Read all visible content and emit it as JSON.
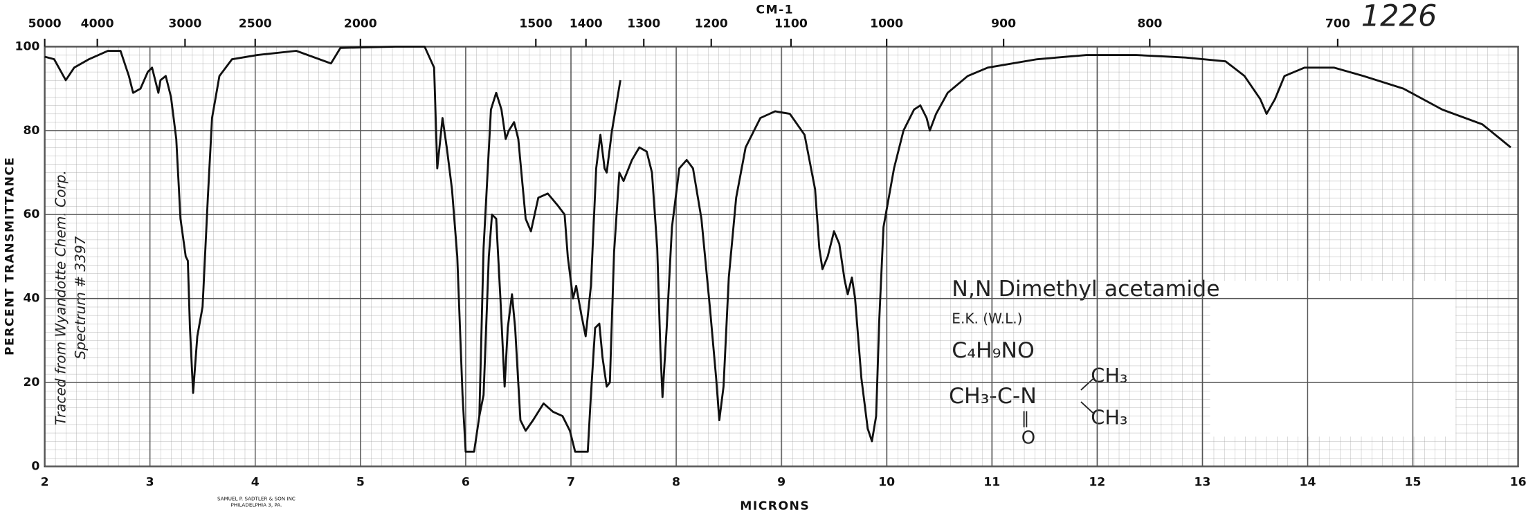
{
  "chart_data": {
    "type": "line",
    "xlabel": "MICRONS",
    "ylabel": "PERCENT TRANSMITTANCE",
    "x2label": "CM-1",
    "xlim": [
      2,
      16
    ],
    "xticks": [
      2,
      3,
      4,
      5,
      6,
      7,
      8,
      9,
      10,
      11,
      12,
      13,
      14,
      15,
      16
    ],
    "ylim": [
      0,
      100
    ],
    "yticks": [
      0,
      20,
      40,
      60,
      80,
      100
    ],
    "x2ticks": [
      5000,
      4000,
      3000,
      2500,
      2000,
      1500,
      1400,
      1300,
      1200,
      1100,
      1000,
      900,
      800,
      700
    ],
    "grid": true,
    "color": "#111111",
    "series": [
      {
        "color": "#111111",
        "x": [
          2.0,
          2.09,
          2.2,
          2.28,
          2.42,
          2.6,
          2.72,
          2.8,
          2.84,
          2.91,
          2.98,
          3.02,
          3.08,
          3.1,
          3.15,
          3.2,
          3.25,
          3.29,
          3.34,
          3.36,
          3.38,
          3.41,
          3.45,
          3.5,
          3.55,
          3.59,
          3.66,
          3.78,
          4.02,
          4.39,
          4.72,
          4.81,
          5.33,
          5.61,
          5.7,
          5.73,
          5.78,
          5.82,
          5.87,
          5.92,
          5.97,
          6.0,
          6.08,
          6.13,
          6.17,
          6.24,
          6.29,
          6.34,
          6.38,
          6.41,
          6.46,
          6.5,
          6.57,
          6.62,
          6.69,
          6.78,
          6.88,
          6.94,
          6.97,
          7.02,
          7.05,
          7.1,
          7.14,
          7.19,
          7.24,
          7.28,
          7.32,
          7.34,
          7.39,
          7.47
        ],
        "values": [
          97.6,
          97,
          92,
          95,
          97,
          99,
          99,
          93,
          89,
          90,
          94,
          95,
          89,
          92,
          93,
          88,
          78,
          59,
          50,
          49,
          33,
          17.5,
          31,
          38,
          64,
          83,
          93,
          97,
          98,
          99,
          96,
          99.7,
          100,
          100,
          95,
          71,
          83,
          76,
          66,
          50,
          17,
          3.5,
          3.5,
          12,
          52,
          85,
          89,
          85,
          78,
          80,
          82,
          78,
          59,
          56,
          64,
          65,
          62,
          60,
          50,
          40,
          43,
          36,
          31,
          43,
          71,
          79,
          71,
          70,
          80,
          92
        ]
      },
      {
        "color": "#111111",
        "x": [
          6.13,
          6.17,
          6.22,
          6.25,
          6.29,
          6.33,
          6.37,
          6.4,
          6.44,
          6.47,
          6.52,
          6.57,
          6.64,
          6.74,
          6.83,
          6.92,
          6.99,
          7.04,
          7.16,
          7.19,
          7.23,
          7.27,
          7.3,
          7.34,
          7.37,
          7.41,
          7.46,
          7.5,
          7.58,
          7.65,
          7.72,
          7.77,
          7.82,
          7.85,
          7.87,
          7.91,
          7.96,
          8.03,
          8.1,
          8.16,
          8.24,
          8.32,
          8.38,
          8.41,
          8.45,
          8.5,
          8.57,
          8.66,
          8.8,
          8.94,
          9.08,
          9.22,
          9.32,
          9.36,
          9.39,
          9.44,
          9.5,
          9.55,
          9.6,
          9.63,
          9.67,
          9.7,
          9.76,
          9.82,
          9.86,
          9.9,
          9.93,
          9.97,
          10.07,
          10.16,
          10.26,
          10.32,
          10.38,
          10.41,
          10.47,
          10.58,
          10.77,
          10.96,
          11.43,
          11.9,
          12.37,
          12.84,
          13.22,
          13.4,
          13.55,
          13.61,
          13.69,
          13.78,
          13.97,
          14.25,
          14.53,
          14.91,
          15.28,
          15.66,
          15.93
        ],
        "values": [
          12,
          17,
          50,
          60,
          59,
          40,
          19,
          33,
          41,
          33,
          11,
          8.5,
          11,
          15,
          13,
          12,
          8.5,
          3.5,
          3.5,
          17,
          33,
          34,
          26,
          19,
          20,
          51,
          70,
          68,
          73,
          76,
          75,
          70,
          52,
          28,
          16.5,
          33,
          57,
          71,
          73,
          71,
          59,
          38,
          21,
          11,
          19,
          45,
          64,
          76,
          83,
          84.6,
          84,
          79,
          66,
          52,
          47,
          50,
          56,
          53,
          44.5,
          41,
          45,
          40,
          21,
          9,
          6,
          12,
          35,
          57,
          71,
          80,
          85,
          86,
          83,
          80,
          84,
          89,
          93,
          95,
          97,
          98,
          98,
          97.4,
          96.5,
          93,
          87.5,
          84,
          87.5,
          93,
          95,
          95,
          93,
          90,
          85,
          81.5,
          76
        ]
      }
    ],
    "annotations": {
      "number": "1226",
      "compound": "N,N Dimethyl acetamide",
      "source": "E.K. (W.L.)",
      "formula": "C₄H₉NO",
      "structure_main": "CH₃-C-N",
      "structure_upper": "CH₃",
      "structure_lower": "CH₃",
      "structure_oxygen": "O",
      "structure_bond": "‖",
      "traced_1": "Traced from Wyandotte Chem. Corp.",
      "traced_2": "Spectrum # 3397",
      "publisher_1": "SAMUEL P. SADTLER & SON INC",
      "publisher_2": "PHILADELPHIA 3, PA."
    }
  }
}
